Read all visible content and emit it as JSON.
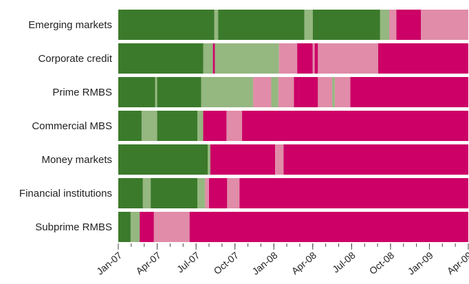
{
  "chart_data": {
    "type": "timeline",
    "colors": [
      "#3b7a2b",
      "#95b780",
      "#e18ca9",
      "#cc0066"
    ],
    "xlim": [
      0,
      27
    ],
    "xticks": [
      {
        "value": 0,
        "label": "Jan-07"
      },
      {
        "value": 3,
        "label": "Apr-07"
      },
      {
        "value": 6,
        "label": "Jul-07"
      },
      {
        "value": 9,
        "label": "Oct-07"
      },
      {
        "value": 12,
        "label": "Jan-08"
      },
      {
        "value": 15,
        "label": "Apr-08"
      },
      {
        "value": 18,
        "label": "Jul-08"
      },
      {
        "value": 21,
        "label": "Oct-08"
      },
      {
        "value": 24,
        "label": "Jan-09"
      },
      {
        "value": 27,
        "label": "Apr-09"
      }
    ],
    "minor_xticks": [
      0,
      1,
      2,
      3,
      4,
      5,
      6,
      7,
      8,
      9,
      10,
      11,
      12,
      13,
      14,
      15,
      16,
      17,
      18,
      19,
      20,
      21,
      22,
      23,
      24,
      25,
      26,
      27
    ],
    "rows": [
      {
        "name": "Emerging markets",
        "segments": [
          [
            0,
            7.4,
            0
          ],
          [
            7.4,
            7.7,
            1
          ],
          [
            7.7,
            14.35,
            0
          ],
          [
            14.35,
            15.0,
            1
          ],
          [
            15.0,
            20.2,
            0
          ],
          [
            20.2,
            20.9,
            1
          ],
          [
            20.9,
            21.45,
            2
          ],
          [
            21.45,
            23.35,
            3
          ],
          [
            23.35,
            27,
            2
          ]
        ]
      },
      {
        "name": "Corporate credit",
        "segments": [
          [
            0,
            6.55,
            0
          ],
          [
            6.55,
            7.3,
            1
          ],
          [
            7.3,
            7.45,
            3
          ],
          [
            7.45,
            12.4,
            1
          ],
          [
            12.4,
            13.8,
            2
          ],
          [
            13.8,
            15.0,
            3
          ],
          [
            15.0,
            15.15,
            2
          ],
          [
            15.15,
            15.4,
            3
          ],
          [
            15.4,
            20.05,
            2
          ],
          [
            20.05,
            27,
            3
          ]
        ]
      },
      {
        "name": "Prime RMBS",
        "segments": [
          [
            0,
            2.85,
            0
          ],
          [
            2.85,
            3.0,
            1
          ],
          [
            3.0,
            6.4,
            0
          ],
          [
            6.4,
            10.4,
            1
          ],
          [
            10.4,
            11.8,
            2
          ],
          [
            11.8,
            12.35,
            1
          ],
          [
            12.35,
            13.55,
            2
          ],
          [
            13.55,
            13.9,
            3
          ],
          [
            13.9,
            15.4,
            3
          ],
          [
            15.4,
            16.5,
            2
          ],
          [
            16.5,
            16.7,
            1
          ],
          [
            16.7,
            17.9,
            2
          ],
          [
            17.9,
            27,
            3
          ]
        ]
      },
      {
        "name": "Commercial MBS",
        "segments": [
          [
            0,
            1.8,
            0
          ],
          [
            1.8,
            3.0,
            1
          ],
          [
            3.0,
            6.1,
            0
          ],
          [
            6.1,
            6.55,
            1
          ],
          [
            6.55,
            8.35,
            3
          ],
          [
            8.35,
            9.55,
            2
          ],
          [
            9.55,
            27,
            3
          ]
        ]
      },
      {
        "name": "Money markets",
        "segments": [
          [
            0,
            6.9,
            0
          ],
          [
            6.9,
            7.1,
            1
          ],
          [
            7.1,
            12.1,
            3
          ],
          [
            12.1,
            12.75,
            2
          ],
          [
            12.75,
            27,
            3
          ]
        ]
      },
      {
        "name": "Financial institutions",
        "segments": [
          [
            0,
            1.9,
            0
          ],
          [
            1.9,
            2.5,
            1
          ],
          [
            2.5,
            6.1,
            0
          ],
          [
            6.1,
            6.7,
            1
          ],
          [
            6.7,
            7.0,
            2
          ],
          [
            7.0,
            8.4,
            3
          ],
          [
            8.4,
            9.35,
            2
          ],
          [
            9.35,
            27,
            3
          ]
        ]
      },
      {
        "name": "Subprime RMBS",
        "segments": [
          [
            0,
            0.95,
            0
          ],
          [
            0.95,
            1.65,
            1
          ],
          [
            1.65,
            2.75,
            3
          ],
          [
            2.75,
            5.5,
            2
          ],
          [
            5.5,
            27,
            3
          ]
        ]
      }
    ]
  }
}
